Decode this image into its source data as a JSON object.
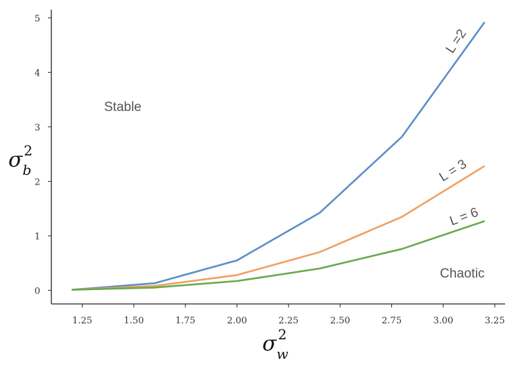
{
  "chart_data": {
    "type": "line",
    "title": "",
    "xlabel": "σ_w^2",
    "ylabel": "σ_b^2",
    "xlim": [
      1.1,
      3.3
    ],
    "ylim": [
      -0.25,
      5.15
    ],
    "grid": false,
    "legend": "inline labels at line ends",
    "xticks": [
      "1.25",
      "1.50",
      "1.75",
      "2.00",
      "2.25",
      "2.50",
      "2.75",
      "3.00",
      "3.25"
    ],
    "yticks": [
      "0",
      "1",
      "2",
      "3",
      "4",
      "5"
    ],
    "series": [
      {
        "name": "L =2",
        "color": "#5b8fc7",
        "x": [
          1.2,
          1.6,
          2.0,
          2.4,
          2.8,
          3.2
        ],
        "y": [
          0.01,
          0.13,
          0.55,
          1.42,
          2.82,
          4.92
        ]
      },
      {
        "name": "L = 3",
        "color": "#f0a060",
        "x": [
          1.2,
          1.6,
          2.0,
          2.4,
          2.8,
          3.2
        ],
        "y": [
          0.01,
          0.08,
          0.28,
          0.7,
          1.35,
          2.28
        ]
      },
      {
        "name": "L = 6",
        "color": "#6aa84f",
        "x": [
          1.2,
          1.6,
          2.0,
          2.4,
          2.8,
          3.2
        ],
        "y": [
          0.01,
          0.05,
          0.17,
          0.4,
          0.76,
          1.27
        ]
      }
    ],
    "annotations": [
      "Stable",
      "Chaotic"
    ]
  }
}
